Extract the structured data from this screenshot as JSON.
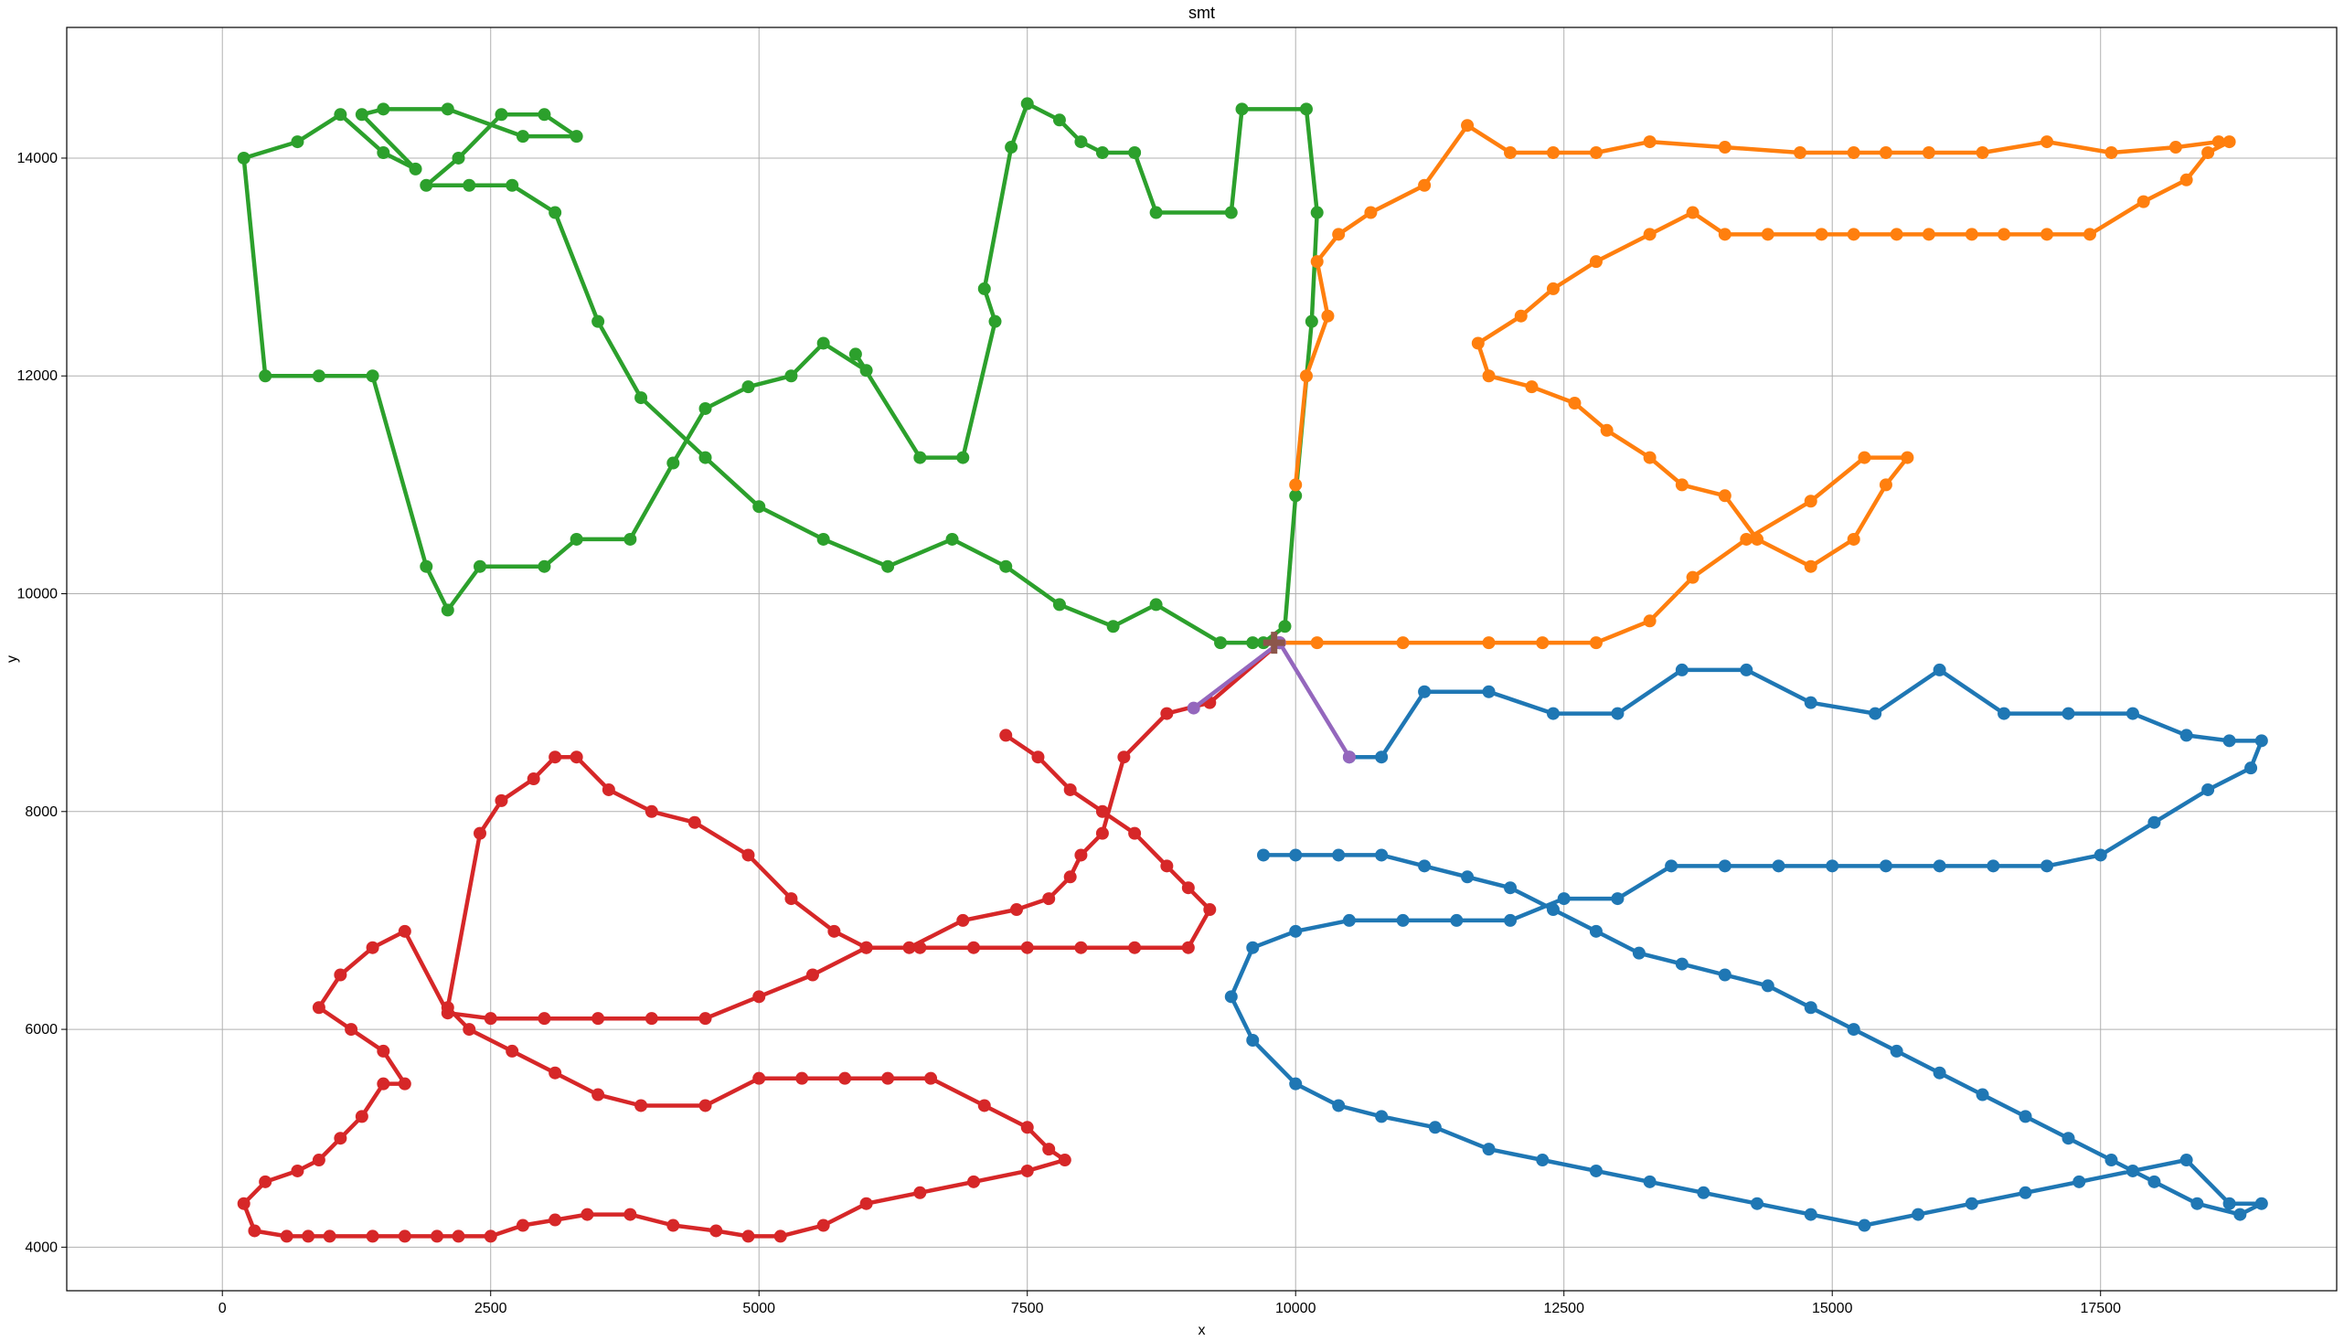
{
  "chart_data": {
    "type": "line",
    "title": "smt",
    "xlabel": "x",
    "ylabel": "y",
    "xlim": [
      -1450,
      19700
    ],
    "ylim": [
      3600,
      15200
    ],
    "xticks": [
      0,
      2500,
      5000,
      7500,
      10000,
      12500,
      15000,
      17500
    ],
    "yticks": [
      4000,
      6000,
      8000,
      10000,
      12000,
      14000
    ],
    "grid": true,
    "legend": "none",
    "series": [
      {
        "color": "#2ca02c",
        "x": [
          9700,
          9900,
          10000,
          10150,
          10200,
          10100,
          9500,
          9400,
          8700,
          8500,
          8200,
          8000,
          7800,
          7500,
          7350,
          7100,
          7200,
          6900,
          6500,
          5900,
          6000,
          5600,
          5300,
          4900,
          4500,
          4200,
          3800,
          3300,
          3000,
          2400,
          2100,
          1900,
          1400,
          900,
          400,
          200,
          700,
          1100,
          1500,
          1800,
          1300,
          1500,
          2100,
          2800,
          3300,
          3000,
          2600,
          2200,
          1900,
          2300,
          2700,
          3100,
          3500,
          3900,
          4500,
          5000,
          5600,
          6200,
          6800,
          7300,
          7800,
          8300,
          8700,
          9300,
          9600,
          9850
        ],
        "y": [
          9550,
          9700,
          10900,
          12500,
          13500,
          14450,
          14450,
          13500,
          13500,
          14050,
          14050,
          14150,
          14350,
          14500,
          14100,
          12800,
          12500,
          11250,
          11250,
          12200,
          12050,
          12300,
          12000,
          11900,
          11700,
          11200,
          10500,
          10500,
          10250,
          10250,
          9850,
          10250,
          12000,
          12000,
          12000,
          14000,
          14150,
          14400,
          14050,
          13900,
          14400,
          14450,
          14450,
          14200,
          14200,
          14400,
          14400,
          14000,
          13750,
          13750,
          13750,
          13500,
          12500,
          11800,
          11250,
          10800,
          10500,
          10250,
          10500,
          10250,
          9900,
          9700,
          9900,
          9550,
          9550,
          9550
        ]
      },
      {
        "color": "#ff7f0e",
        "x": [
          9850,
          10200,
          11000,
          11800,
          12300,
          12800,
          13300,
          13700,
          14200,
          14800,
          15300,
          15700,
          15500,
          15200,
          14800,
          14300,
          14000,
          13600,
          13300,
          12900,
          12600,
          12200,
          11800,
          11700,
          12100,
          12400,
          12800,
          13300,
          13700,
          14000,
          14400,
          14900,
          15200,
          15600,
          15900,
          16300,
          16600,
          17000,
          17400,
          17900,
          18300,
          18500,
          18700,
          18600,
          18200,
          17600,
          17000,
          16400,
          15900,
          15500,
          15200,
          14700,
          14000,
          13300,
          12800,
          12400,
          12000,
          11600,
          11200,
          10700,
          10400,
          10200,
          10300,
          10100,
          10000
        ],
        "y": [
          9550,
          9550,
          9550,
          9550,
          9550,
          9550,
          9750,
          10150,
          10500,
          10850,
          11250,
          11250,
          11000,
          10500,
          10250,
          10500,
          10900,
          11000,
          11250,
          11500,
          11750,
          11900,
          12000,
          12300,
          12550,
          12800,
          13050,
          13300,
          13500,
          13300,
          13300,
          13300,
          13300,
          13300,
          13300,
          13300,
          13300,
          13300,
          13300,
          13600,
          13800,
          14050,
          14150,
          14150,
          14100,
          14050,
          14150,
          14050,
          14050,
          14050,
          14050,
          14050,
          14100,
          14150,
          14050,
          14050,
          14050,
          14300,
          13750,
          13500,
          13300,
          13050,
          12550,
          12000,
          11000
        ]
      },
      {
        "color": "#d62728",
        "x": [
          9850,
          9200,
          8800,
          8400,
          8200,
          8000,
          7900,
          7700,
          7400,
          6900,
          6400,
          6000,
          5700,
          5300,
          4900,
          4400,
          4000,
          3600,
          3300,
          3100,
          2900,
          2600,
          2400,
          2100,
          2300,
          2700,
          3100,
          3500,
          3900,
          4500,
          5000,
          5400,
          5800,
          6200,
          6600,
          7100,
          7500,
          7700,
          7850,
          7500,
          7000,
          6500,
          6000,
          5600,
          5200,
          4900,
          4600,
          4200,
          3800,
          3400,
          3100,
          2800,
          2500,
          2200,
          2000,
          1700,
          1400,
          1000,
          800,
          600,
          300,
          200,
          400,
          700,
          900,
          1100,
          1300,
          1500,
          1700,
          1500,
          1200,
          900,
          1100,
          1400,
          1700,
          2100,
          2500,
          3000,
          3500,
          4000,
          4500,
          5000,
          5500,
          6000,
          6500,
          7000,
          7500,
          8000,
          8500,
          9000,
          9200,
          9000,
          8800,
          8500,
          8200,
          7900,
          7600,
          7300
        ],
        "y": [
          9550,
          9000,
          8900,
          8500,
          7800,
          7600,
          7400,
          7200,
          7100,
          7000,
          6750,
          6750,
          6900,
          7200,
          7600,
          7900,
          8000,
          8200,
          8500,
          8500,
          8300,
          8100,
          7800,
          6200,
          6000,
          5800,
          5600,
          5400,
          5300,
          5300,
          5550,
          5550,
          5550,
          5550,
          5550,
          5300,
          5100,
          4900,
          4800,
          4700,
          4600,
          4500,
          4400,
          4200,
          4100,
          4100,
          4150,
          4200,
          4300,
          4300,
          4250,
          4200,
          4100,
          4100,
          4100,
          4100,
          4100,
          4100,
          4100,
          4100,
          4150,
          4400,
          4600,
          4700,
          4800,
          5000,
          5200,
          5500,
          5500,
          5800,
          6000,
          6200,
          6500,
          6750,
          6900,
          6150,
          6100,
          6100,
          6100,
          6100,
          6100,
          6300,
          6500,
          6750,
          6750,
          6750,
          6750,
          6750,
          6750,
          6750,
          7100,
          7300,
          7500,
          7800,
          8000,
          8200,
          8500,
          8700
        ]
      },
      {
        "color": "#1f77b4",
        "x": [
          10500,
          10800,
          11200,
          11800,
          12400,
          13000,
          13600,
          14200,
          14800,
          15400,
          16000,
          16600,
          17200,
          17800,
          18300,
          18700,
          19000,
          18900,
          18500,
          18000,
          17500,
          17000,
          16500,
          16000,
          15500,
          15000,
          14500,
          14000,
          13500,
          13000,
          12500,
          12000,
          11500,
          11000,
          10500,
          10000,
          9600,
          9400,
          9600,
          10000,
          10400,
          10800,
          11300,
          11800,
          12300,
          12800,
          13300,
          13800,
          14300,
          14800,
          15300,
          15800,
          16300,
          16800,
          17300,
          17800,
          18300,
          18700,
          19000,
          18800,
          18400,
          18000,
          17600,
          17200,
          16800,
          16400,
          16000,
          15600,
          15200,
          14800,
          14400,
          14000,
          13600,
          13200,
          12800,
          12400,
          12000,
          11600,
          11200,
          10800,
          10400,
          10000,
          9700
        ],
        "y": [
          8500,
          8500,
          9100,
          9100,
          8900,
          8900,
          9300,
          9300,
          9000,
          8900,
          9300,
          8900,
          8900,
          8900,
          8700,
          8650,
          8650,
          8400,
          8200,
          7900,
          7600,
          7500,
          7500,
          7500,
          7500,
          7500,
          7500,
          7500,
          7500,
          7200,
          7200,
          7000,
          7000,
          7000,
          7000,
          6900,
          6750,
          6300,
          5900,
          5500,
          5300,
          5200,
          5100,
          4900,
          4800,
          4700,
          4600,
          4500,
          4400,
          4300,
          4200,
          4300,
          4400,
          4500,
          4600,
          4700,
          4800,
          4400,
          4400,
          4300,
          4400,
          4600,
          4800,
          5000,
          5200,
          5400,
          5600,
          5800,
          6000,
          6200,
          6400,
          6500,
          6600,
          6700,
          6900,
          7100,
          7300,
          7400,
          7500,
          7600,
          7600,
          7600,
          7600
        ]
      },
      {
        "color": "#9467bd",
        "x": [
          9850,
          9050,
          9850,
          10500
        ],
        "y": [
          9550,
          8950,
          9550,
          8500
        ]
      }
    ],
    "marker": {
      "color": "#8c564b",
      "x": 9800,
      "y": 9550,
      "shape": "plus"
    }
  }
}
